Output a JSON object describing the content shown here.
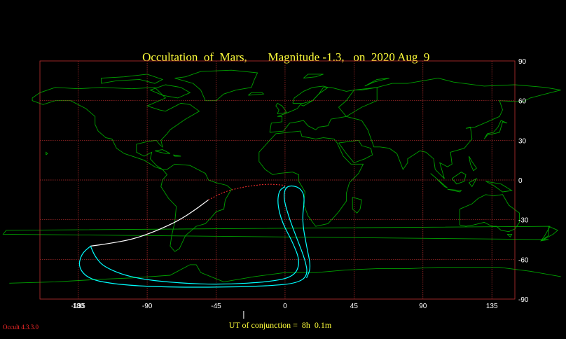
{
  "title": {
    "body": "Mars",
    "prefix": "Occultation  of  ",
    "magnitude": "Magnitude -1.3,",
    "date": "on  2020 Aug  9"
  },
  "chart_data": {
    "type": "map",
    "projection": "equirectangular",
    "xlim": [
      -160,
      150
    ],
    "ylim": [
      -90,
      90
    ],
    "x_ticks": [
      180,
      -135,
      -90,
      -45,
      0,
      45,
      90,
      135
    ],
    "y_ticks": [
      90,
      60,
      30,
      0,
      -30,
      -60,
      -90
    ],
    "grid": true,
    "grid_color": "#c03030",
    "coast_color": "#00a000",
    "paths": [
      {
        "role": "daylight-limit-track",
        "color": "#ffffff",
        "points": [
          [
            -50,
            -15
          ],
          [
            -58,
            -22
          ],
          [
            -70,
            -31
          ],
          [
            -85,
            -39
          ],
          [
            -100,
            -45
          ],
          [
            -115,
            -48
          ],
          [
            -127,
            -50
          ]
        ]
      },
      {
        "role": "southern-limit",
        "color": "#00ffff",
        "points": [
          [
            -127,
            -50
          ],
          [
            -133,
            -56
          ],
          [
            -135,
            -66
          ],
          [
            -128,
            -75
          ],
          [
            -110,
            -79
          ],
          [
            -80,
            -81
          ],
          [
            -40,
            -81
          ],
          [
            -10,
            -80
          ],
          [
            8,
            -78
          ],
          [
            15,
            -72
          ],
          [
            13,
            -60
          ],
          [
            8,
            -45
          ],
          [
            3,
            -30
          ],
          [
            -1,
            -14
          ],
          [
            0,
            -6
          ],
          [
            4,
            -4
          ],
          [
            10,
            -6
          ],
          [
            13,
            -13
          ],
          [
            11,
            -30
          ],
          [
            14,
            -50
          ],
          [
            17,
            -66
          ],
          [
            14,
            -74
          ]
        ]
      },
      {
        "role": "northern-limit",
        "color": "#00ffff",
        "points": [
          [
            -127,
            -50
          ],
          [
            -124,
            -58
          ],
          [
            -118,
            -66
          ],
          [
            -100,
            -74
          ],
          [
            -70,
            -78
          ],
          [
            -40,
            -79
          ],
          [
            -10,
            -77
          ],
          [
            6,
            -73
          ],
          [
            10,
            -62
          ],
          [
            5,
            -47
          ],
          [
            -2,
            -32
          ],
          [
            -5,
            -18
          ],
          [
            -4,
            -8
          ],
          [
            0,
            -5
          ]
        ]
      },
      {
        "role": "dashed-track",
        "color": "#ff3030",
        "dashed": true,
        "points": [
          [
            -50,
            -15
          ],
          [
            -40,
            -9
          ],
          [
            -30,
            -6
          ],
          [
            -20,
            -4
          ],
          [
            -10,
            -3
          ],
          [
            0,
            -4
          ]
        ]
      }
    ]
  },
  "ut": {
    "label": "UT of conjunction =  8h  0.1m",
    "lon": -27
  },
  "version": "Occult 4.3.3.0"
}
